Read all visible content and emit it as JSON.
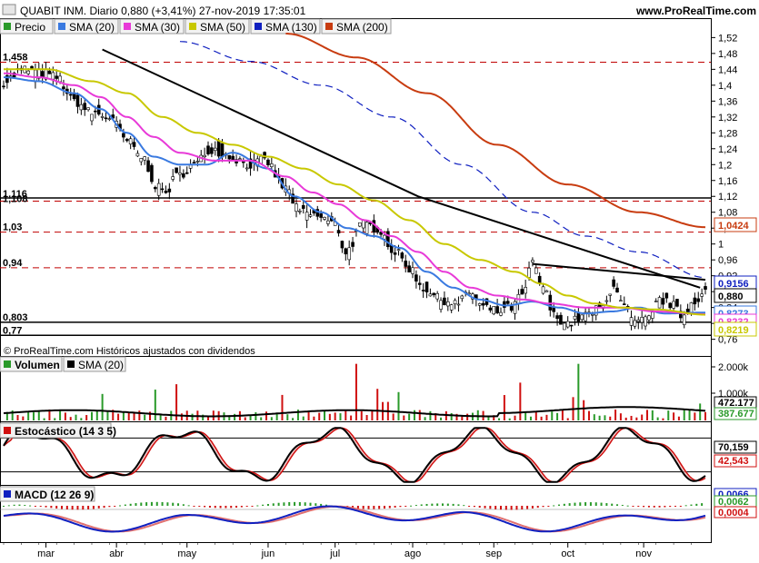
{
  "header": {
    "title": "QUABIT INM. Diario 0,880 (+3,41%) 27-nov-2019 17:35:01",
    "site": "www.ProRealTime.com"
  },
  "legend": {
    "price": "Precio",
    "items": [
      {
        "label": "SMA (20)",
        "color": "#3a7ae0"
      },
      {
        "label": "SMA (30)",
        "color": "#e83ad8"
      },
      {
        "label": "SMA (50)",
        "color": "#c8c800"
      },
      {
        "label": "SMA (130)",
        "color": "#1020c0"
      },
      {
        "label": "SMA (200)",
        "color": "#c83c10"
      }
    ]
  },
  "copyright": "© ProRealTime.com  Históricos ajustados con dividendos",
  "colors": {
    "up": "#2a9a2a",
    "down": "#d01010",
    "trendline": "#000000",
    "level": "#c00000"
  },
  "chart_data": [
    {
      "type": "candlestick",
      "title": "Precio",
      "x_months": [
        "mar",
        "abr",
        "may",
        "jun",
        "jul",
        "ago",
        "sep",
        "oct",
        "nov"
      ],
      "y_ticks": [
        "1,52",
        "1,48",
        "1,44",
        "1,4",
        "1,36",
        "1,32",
        "1,28",
        "1,24",
        "1,2",
        "1,16",
        "1,12",
        "1,08",
        "1,04",
        "1",
        "0,96",
        "0,92",
        "0,88",
        "0,84",
        "0,8",
        "0,76"
      ],
      "ylim": [
        0.75,
        1.53
      ],
      "horizontal_levels": [
        {
          "label": "1,458",
          "value": 1.458,
          "style": "dashed"
        },
        {
          "label": "1,116",
          "value": 1.116,
          "style": "solid"
        },
        {
          "label": "1,108",
          "value": 1.108,
          "style": "dashed"
        },
        {
          "label": "1,03",
          "value": 1.03,
          "style": "dashed"
        },
        {
          "label": "0,94",
          "value": 0.94,
          "style": "dashed"
        },
        {
          "label": "0,803",
          "value": 0.803,
          "style": "solid"
        },
        {
          "label": "0,77",
          "value": 0.77,
          "style": "solid"
        }
      ],
      "last_values": [
        {
          "label": "1,0424",
          "value": 1.0424,
          "series": "SMA (200)",
          "color": "#c83c10"
        },
        {
          "label": "0,9156",
          "value": 0.9156,
          "series": "SMA (130)",
          "color": "#1020c0"
        },
        {
          "label": "0,880",
          "value": 0.88,
          "series": "Precio",
          "color": "#000000"
        },
        {
          "label": "0,8273",
          "value": 0.8273,
          "series": "SMA (20)",
          "color": "#3a7ae0"
        },
        {
          "label": "0,8232",
          "value": 0.8232,
          "series": "SMA (30)",
          "color": "#e83ad8"
        },
        {
          "label": "0,8219",
          "value": 0.8219,
          "series": "SMA (50)",
          "color": "#c8c800"
        }
      ],
      "close_anchors": [
        [
          0,
          1.41
        ],
        [
          12,
          1.44
        ],
        [
          22,
          1.43
        ],
        [
          30,
          1.42
        ],
        [
          40,
          1.36
        ],
        [
          50,
          1.33
        ],
        [
          60,
          1.32
        ],
        [
          70,
          1.26
        ],
        [
          78,
          1.22
        ],
        [
          88,
          1.14
        ],
        [
          92,
          1.13
        ],
        [
          98,
          1.17
        ],
        [
          108,
          1.2
        ],
        [
          118,
          1.24
        ],
        [
          128,
          1.22
        ],
        [
          140,
          1.2
        ],
        [
          148,
          1.21
        ],
        [
          160,
          1.14
        ],
        [
          168,
          1.08
        ],
        [
          178,
          1.07
        ],
        [
          188,
          1.05
        ],
        [
          194,
          0.98
        ],
        [
          204,
          1.05
        ],
        [
          212,
          1.04
        ],
        [
          222,
          0.98
        ],
        [
          230,
          0.94
        ],
        [
          238,
          0.89
        ],
        [
          248,
          0.86
        ],
        [
          258,
          0.85
        ],
        [
          264,
          0.88
        ],
        [
          272,
          0.84
        ],
        [
          280,
          0.83
        ],
        [
          288,
          0.84
        ],
        [
          294,
          0.87
        ],
        [
          300,
          0.95
        ],
        [
          306,
          0.89
        ],
        [
          312,
          0.82
        ],
        [
          320,
          0.8
        ],
        [
          330,
          0.82
        ],
        [
          340,
          0.84
        ],
        [
          346,
          0.9
        ],
        [
          352,
          0.84
        ],
        [
          358,
          0.8
        ],
        [
          366,
          0.81
        ],
        [
          372,
          0.86
        ],
        [
          378,
          0.85
        ],
        [
          385,
          0.82
        ],
        [
          392,
          0.86
        ],
        [
          398,
          0.88
        ]
      ],
      "sma_anchors": {
        "SMA (20)": [
          [
            0,
            1.42
          ],
          [
            20,
            1.41
          ],
          [
            40,
            1.38
          ],
          [
            55,
            1.34
          ],
          [
            70,
            1.28
          ],
          [
            85,
            1.22
          ],
          [
            100,
            1.2
          ],
          [
            115,
            1.2
          ],
          [
            130,
            1.23
          ],
          [
            150,
            1.19
          ],
          [
            165,
            1.12
          ],
          [
            180,
            1.08
          ],
          [
            195,
            1.04
          ],
          [
            210,
            1.02
          ],
          [
            225,
            0.99
          ],
          [
            240,
            0.93
          ],
          [
            255,
            0.89
          ],
          [
            270,
            0.86
          ],
          [
            285,
            0.845
          ],
          [
            300,
            0.855
          ],
          [
            315,
            0.84
          ],
          [
            330,
            0.825
          ],
          [
            345,
            0.83
          ],
          [
            360,
            0.84
          ],
          [
            375,
            0.825
          ],
          [
            398,
            0.8273
          ]
        ],
        "SMA (30)": [
          [
            0,
            1.43
          ],
          [
            20,
            1.42
          ],
          [
            40,
            1.4
          ],
          [
            55,
            1.37
          ],
          [
            70,
            1.32
          ],
          [
            85,
            1.27
          ],
          [
            100,
            1.23
          ],
          [
            120,
            1.21
          ],
          [
            140,
            1.21
          ],
          [
            160,
            1.17
          ],
          [
            175,
            1.13
          ],
          [
            190,
            1.1
          ],
          [
            205,
            1.06
          ],
          [
            220,
            1.02
          ],
          [
            235,
            0.98
          ],
          [
            250,
            0.93
          ],
          [
            265,
            0.89
          ],
          [
            280,
            0.87
          ],
          [
            295,
            0.86
          ],
          [
            310,
            0.85
          ],
          [
            330,
            0.84
          ],
          [
            350,
            0.84
          ],
          [
            370,
            0.83
          ],
          [
            398,
            0.8232
          ]
        ],
        "SMA (50)": [
          [
            0,
            1.44
          ],
          [
            25,
            1.44
          ],
          [
            50,
            1.41
          ],
          [
            70,
            1.38
          ],
          [
            90,
            1.32
          ],
          [
            110,
            1.28
          ],
          [
            130,
            1.25
          ],
          [
            150,
            1.22
          ],
          [
            170,
            1.19
          ],
          [
            190,
            1.15
          ],
          [
            210,
            1.11
          ],
          [
            230,
            1.06
          ],
          [
            250,
            1.0
          ],
          [
            270,
            0.96
          ],
          [
            290,
            0.93
          ],
          [
            305,
            0.9
          ],
          [
            320,
            0.87
          ],
          [
            335,
            0.85
          ],
          [
            350,
            0.84
          ],
          [
            370,
            0.835
          ],
          [
            398,
            0.8219
          ]
        ],
        "SMA (130)": [
          [
            100,
            1.51
          ],
          [
            140,
            1.46
          ],
          [
            180,
            1.4
          ],
          [
            220,
            1.32
          ],
          [
            260,
            1.2
          ],
          [
            300,
            1.08
          ],
          [
            330,
            1.02
          ],
          [
            360,
            0.98
          ],
          [
            398,
            0.9156
          ]
        ],
        "SMA (200)": [
          [
            160,
            1.53
          ],
          [
            200,
            1.47
          ],
          [
            240,
            1.38
          ],
          [
            280,
            1.25
          ],
          [
            320,
            1.15
          ],
          [
            360,
            1.08
          ],
          [
            398,
            1.0424
          ]
        ]
      },
      "trendlines": [
        [
          [
            56,
            1.49
          ],
          [
            235,
            1.12
          ],
          [
            395,
            0.89
          ]
        ],
        [
          [
            300,
            0.95
          ],
          [
            398,
            0.91
          ]
        ]
      ]
    },
    {
      "type": "bar",
      "title": "Volumen",
      "series": [
        {
          "name": "SMA (20)"
        }
      ],
      "y_ticks": [
        "2.000k",
        "1.000k"
      ],
      "last_values": [
        {
          "label": "472.177",
          "color": "#000000"
        },
        {
          "label": "387.677",
          "color": "#2a9a2a"
        }
      ]
    },
    {
      "type": "line",
      "title": "Estocástico (14 3 5)",
      "last_values": [
        {
          "label": "70,159",
          "color": "#000000"
        },
        {
          "label": "42,543",
          "color": "#d01010"
        }
      ]
    },
    {
      "type": "line",
      "title": "MACD (12 26 9)",
      "last_values": [
        {
          "label": "0,0066",
          "color": "#1020c0"
        },
        {
          "label": "0,0062",
          "color": "#2a9a2a"
        },
        {
          "label": "0,0004",
          "color": "#d01010"
        }
      ]
    }
  ]
}
